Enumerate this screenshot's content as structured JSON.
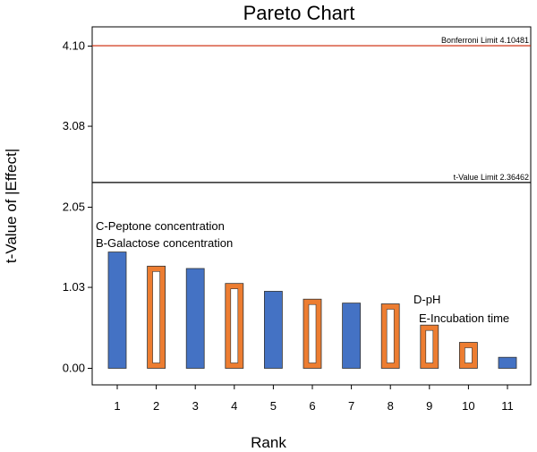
{
  "chart_data": {
    "type": "bar",
    "title": "Pareto Chart",
    "xlabel": "Rank",
    "ylabel": "t-Value of |Effect|",
    "ylim": [
      -0.15,
      4.4
    ],
    "yticks": [
      "0.00",
      "1.03",
      "2.05",
      "3.08",
      "4.10"
    ],
    "ytick_values": [
      0.0,
      1.03,
      2.05,
      3.08,
      4.1
    ],
    "categories": [
      "1",
      "2",
      "3",
      "4",
      "5",
      "6",
      "7",
      "8",
      "9",
      "10",
      "11"
    ],
    "values": [
      1.48,
      1.3,
      1.27,
      1.08,
      0.98,
      0.88,
      0.83,
      0.82,
      0.55,
      0.33,
      0.14
    ],
    "effect_sign": [
      "positive",
      "negative",
      "positive",
      "negative",
      "positive",
      "negative",
      "positive",
      "negative",
      "negative",
      "negative",
      "positive"
    ],
    "colors": {
      "positive": "#4472c4",
      "negative": "#ed7d31",
      "inner": "#ffffff",
      "bonferroni": "#cc2200",
      "tlimit": "#000000"
    },
    "reference_lines": [
      {
        "id": "bonferroni",
        "label": "Bonferroni Limit 4.10481",
        "value": 4.10481
      },
      {
        "id": "tlimit",
        "label": "t-Value Limit 2.36462",
        "value": 2.36462
      }
    ],
    "annotations": [
      {
        "text": "C-Peptone concentration"
      },
      {
        "text": "B-Galactose concentration"
      },
      {
        "text": "D-pH"
      },
      {
        "text": "E-Incubation time"
      }
    ]
  }
}
